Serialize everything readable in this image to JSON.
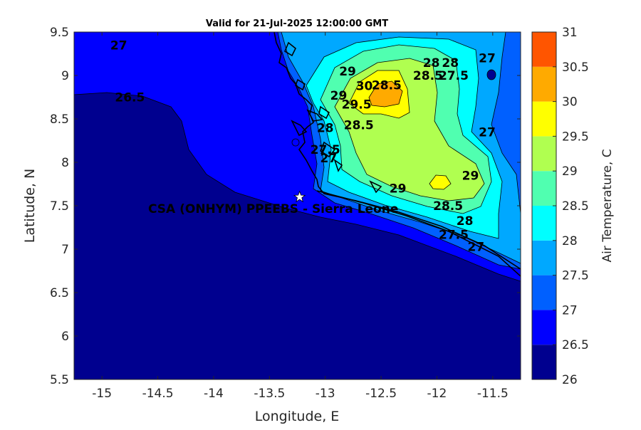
{
  "title": "Valid for 21-Jul-2025 12:00:00 GMT",
  "station_label": "CSA (ONHYM) PPEEBS - Sierra Leone",
  "colors": {
    "levels": [
      {
        "min": 26.0,
        "color": "#00008f"
      },
      {
        "min": 26.5,
        "color": "#0000ff"
      },
      {
        "min": 27.0,
        "color": "#0060ff"
      },
      {
        "min": 27.5,
        "color": "#00a8ff"
      },
      {
        "min": 28.0,
        "color": "#00ffff"
      },
      {
        "min": 28.5,
        "color": "#50ffb0"
      },
      {
        "min": 29.0,
        "color": "#b0ff50"
      },
      {
        "min": 29.5,
        "color": "#ffff00"
      },
      {
        "min": 30.0,
        "color": "#ffaa00"
      },
      {
        "min": 30.5,
        "color": "#ff5500"
      },
      {
        "min": 31.0,
        "color": "#ff0000"
      }
    ]
  },
  "chart_data": {
    "type": "contour",
    "xlabel": "Longitude, E",
    "ylabel": "Latitude, N",
    "colorbar_label": "Air Temperature, C",
    "xlim": [
      -15.25,
      -11.25
    ],
    "ylim": [
      5.5,
      9.5
    ],
    "xticks": [
      "-15",
      "-14.5",
      "-14",
      "-13.5",
      "-13",
      "-12.5",
      "-12",
      "-11.5"
    ],
    "yticks": [
      "5.5",
      "6",
      "6.5",
      "7",
      "7.5",
      "8",
      "8.5",
      "9",
      "9.5"
    ],
    "colorbar_ticks": [
      "26",
      "26.5",
      "27",
      "27.5",
      "28",
      "28.5",
      "29",
      "29.5",
      "30",
      "30.5",
      "31"
    ],
    "colorbar_range": [
      26,
      31
    ],
    "station": {
      "lon": -13.23,
      "lat": 7.6,
      "marker": "white star"
    },
    "contour_labels": [
      {
        "text": "27",
        "lon": -14.85,
        "lat": 9.3
      },
      {
        "text": "26.5",
        "lon": -14.75,
        "lat": 8.7
      },
      {
        "text": "29",
        "lon": -12.8,
        "lat": 9.0
      },
      {
        "text": "30",
        "lon": -12.65,
        "lat": 8.83
      },
      {
        "text": "29",
        "lon": -12.88,
        "lat": 8.72
      },
      {
        "text": "29.5",
        "lon": -12.72,
        "lat": 8.62
      },
      {
        "text": "28.5",
        "lon": -12.45,
        "lat": 8.84
      },
      {
        "text": "28",
        "lon": -12.05,
        "lat": 9.1
      },
      {
        "text": "28.5",
        "lon": -12.08,
        "lat": 8.95
      },
      {
        "text": "28",
        "lon": -11.88,
        "lat": 9.1
      },
      {
        "text": "27.5",
        "lon": -11.85,
        "lat": 8.95
      },
      {
        "text": "27",
        "lon": -11.55,
        "lat": 9.15
      },
      {
        "text": "28",
        "lon": -13.0,
        "lat": 8.35
      },
      {
        "text": "28.5",
        "lon": -12.7,
        "lat": 8.38
      },
      {
        "text": "27.5",
        "lon": -13.0,
        "lat": 8.1
      },
      {
        "text": "27",
        "lon": -12.97,
        "lat": 8.0
      },
      {
        "text": "27",
        "lon": -11.55,
        "lat": 8.3
      },
      {
        "text": "29",
        "lon": -11.7,
        "lat": 7.8
      },
      {
        "text": "29",
        "lon": -12.35,
        "lat": 7.65
      },
      {
        "text": "28.5",
        "lon": -11.9,
        "lat": 7.45
      },
      {
        "text": "28",
        "lon": -11.75,
        "lat": 7.28
      },
      {
        "text": "27.5",
        "lon": -11.85,
        "lat": 7.12
      },
      {
        "text": "27",
        "lon": -11.65,
        "lat": 6.98
      }
    ]
  }
}
